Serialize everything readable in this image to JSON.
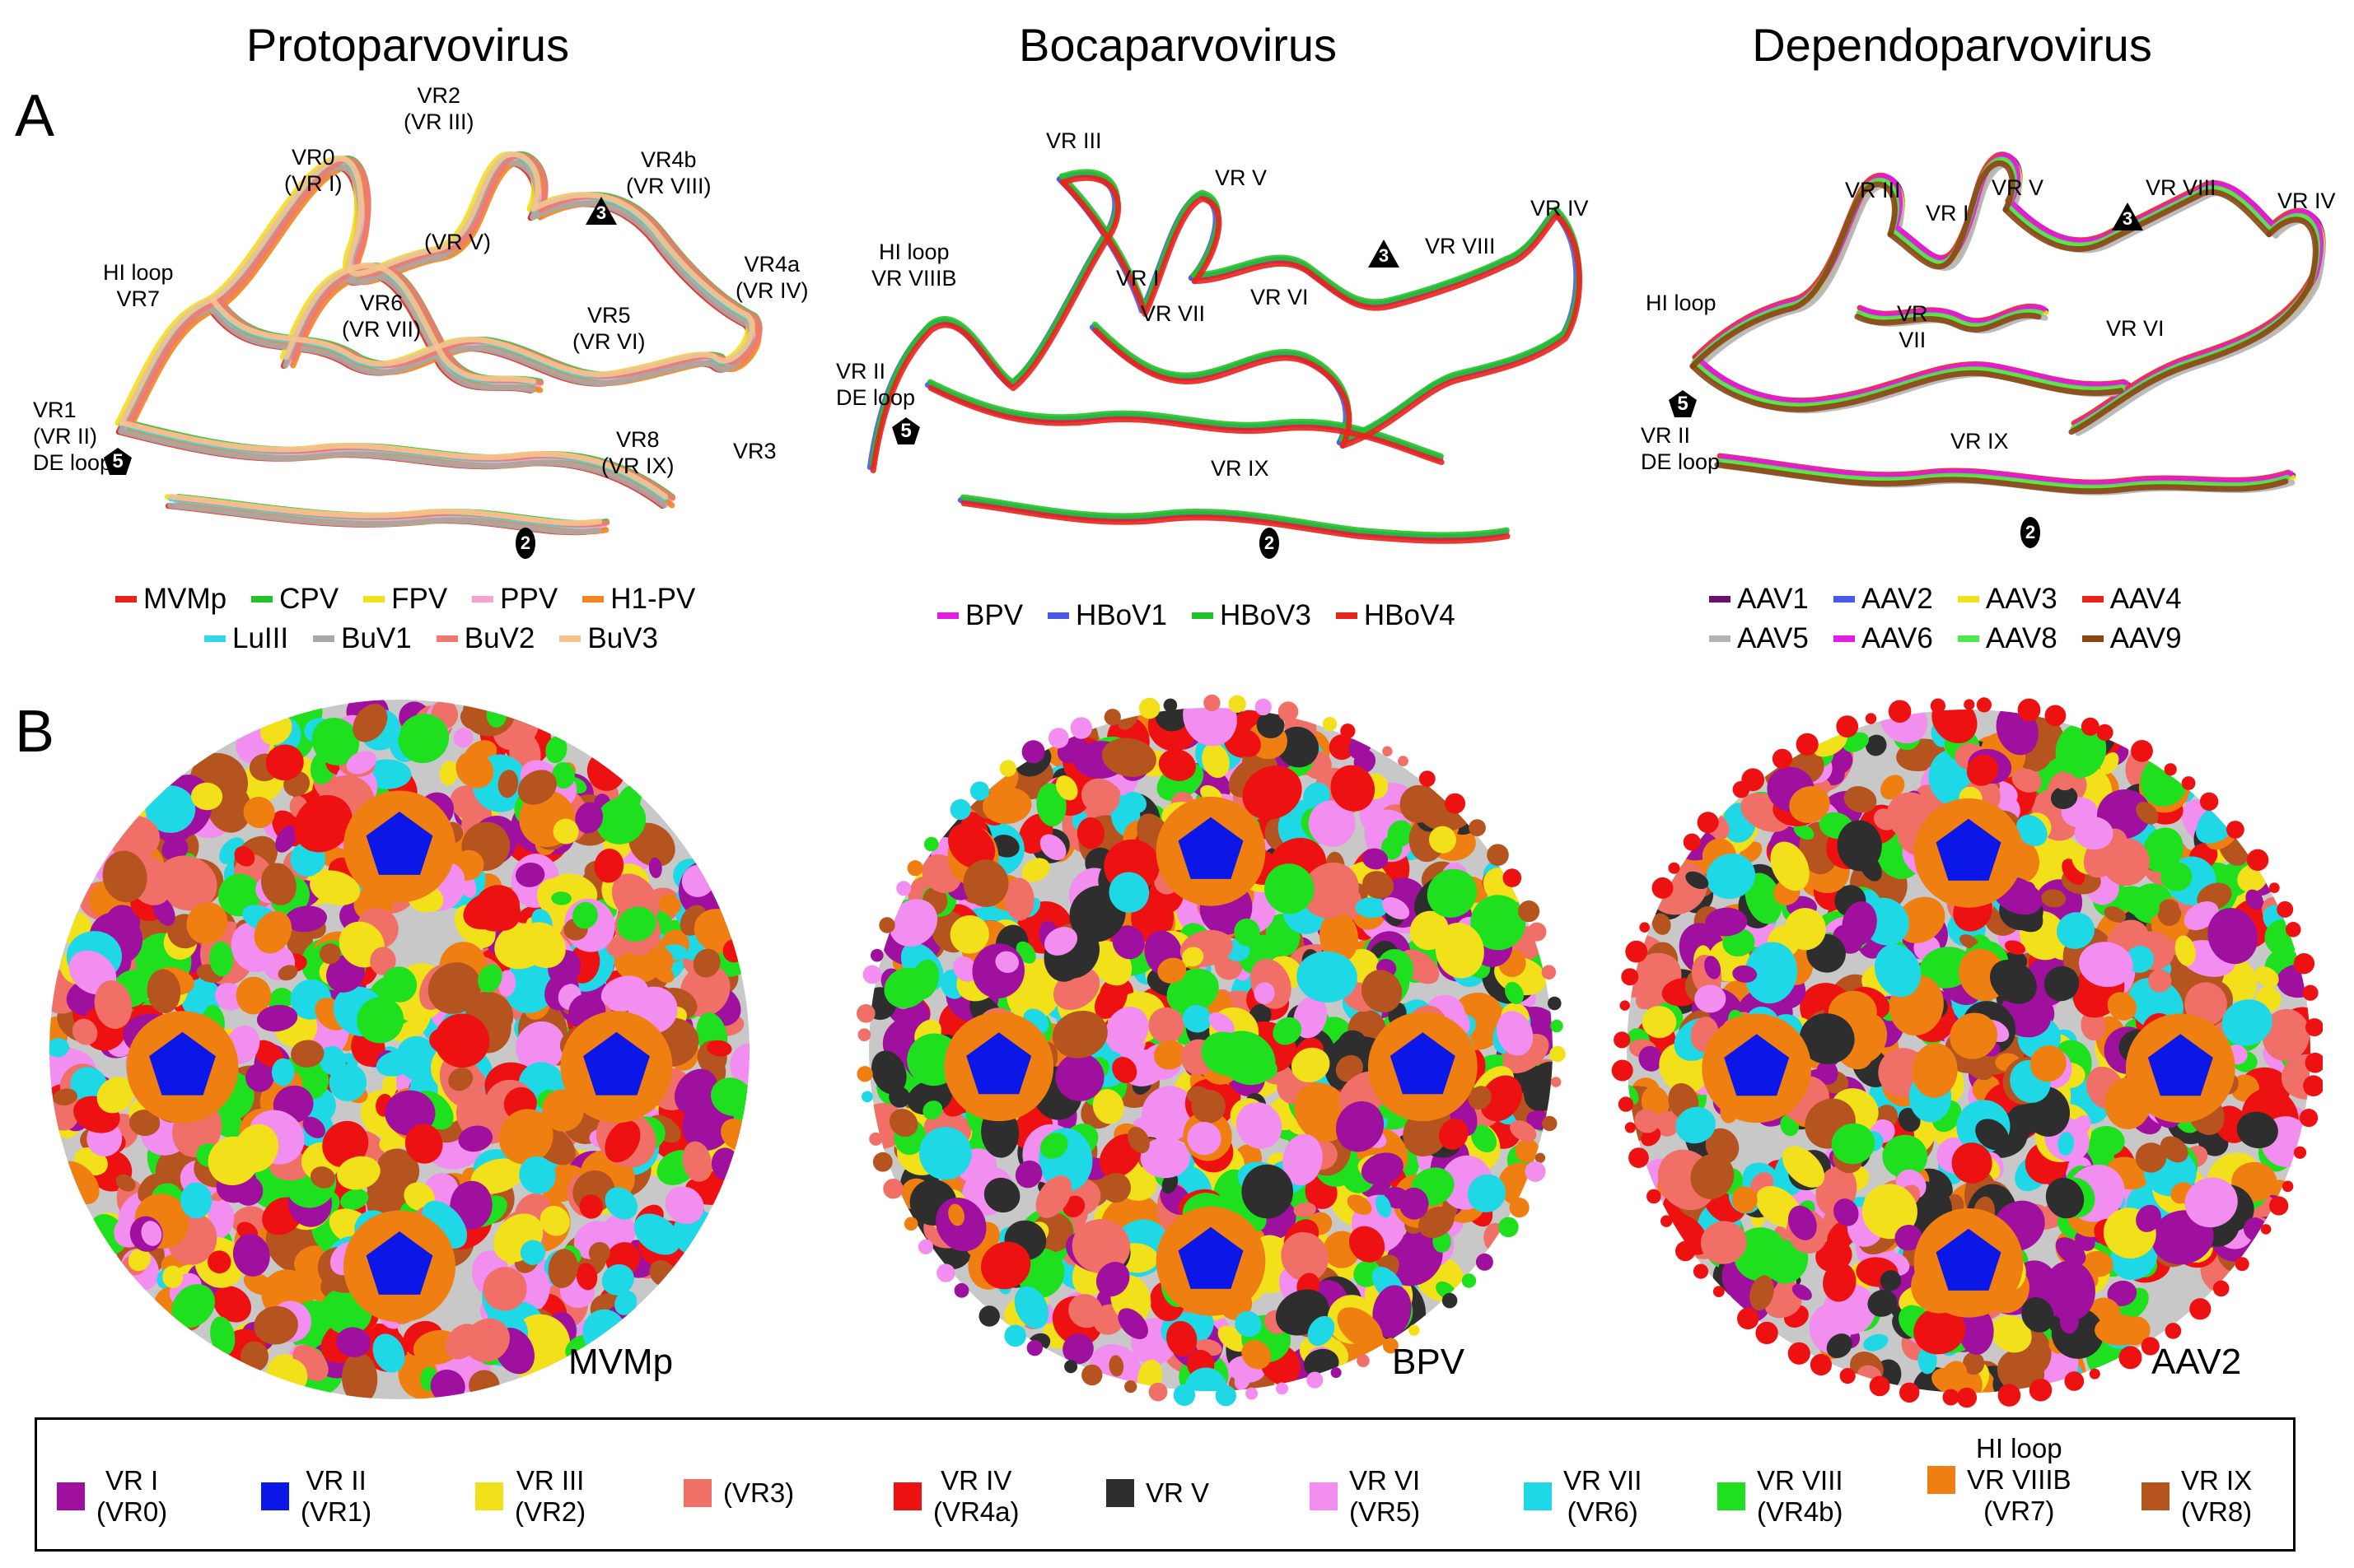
{
  "column_titles": [
    "Protoparvovirus",
    "Bocaparvovirus",
    "Dependoparvovirus"
  ],
  "panel_letters": {
    "a": "A",
    "b": "B"
  },
  "proto": {
    "labels": {
      "vr2": "VR2",
      "vr2b": "(VR III)",
      "vr0": "VR0",
      "vr0b": "(VR I)",
      "vr4b": "VR4b",
      "vr4bb": "(VR VIII)",
      "vrv": "(VR V)",
      "hi": "HI loop",
      "hib": "VR7",
      "vr6": "VR6",
      "vr6b": "(VR VII)",
      "vr4a": "VR4a",
      "vr4ab": "(VR IV)",
      "vr5": "VR5",
      "vr5b": "(VR VI)",
      "vr1": "VR1",
      "vr1b": "(VR II)",
      "de": "DE loop",
      "vr8": "VR8",
      "vr8b": "(VR IX)",
      "vr3": "VR3"
    },
    "legend": [
      {
        "name": "MVMp",
        "color": "#e8231c"
      },
      {
        "name": "CPV",
        "color": "#22c32a"
      },
      {
        "name": "FPV",
        "color": "#f2e01a"
      },
      {
        "name": "PPV",
        "color": "#f6a3cf"
      },
      {
        "name": "H1-PV",
        "color": "#f08522"
      },
      {
        "name": "LuIII",
        "color": "#31d6e8"
      },
      {
        "name": "BuV1",
        "color": "#a8a8a8"
      },
      {
        "name": "BuV2",
        "color": "#f07a72"
      },
      {
        "name": "BuV3",
        "color": "#f5c38f"
      }
    ],
    "capsid_label": "MVMp"
  },
  "boca": {
    "labels": {
      "vr3": "VR III",
      "vr5": "VR V",
      "hi": "HI loop",
      "hib": "VR VIIIB",
      "vr1": "VR I",
      "vr8": "VR VIII",
      "vr4": "VR IV",
      "vr7": "VR VII",
      "vr6": "VR VI",
      "vr2": "VR II",
      "de": "DE loop",
      "vr9": "VR IX"
    },
    "legend": [
      {
        "name": "BPV",
        "color": "#e01de0"
      },
      {
        "name": "HBoV1",
        "color": "#4a5ae8"
      },
      {
        "name": "HBoV3",
        "color": "#22c32a"
      },
      {
        "name": "HBoV4",
        "color": "#e8231c"
      }
    ],
    "capsid_label": "BPV"
  },
  "depend": {
    "labels": {
      "vr3": "VR III",
      "vr1": "VR I",
      "vr5": "VR V",
      "vr8": "VR VIII",
      "vr4": "VR IV",
      "hi": "HI loop",
      "vr": "VR",
      "vr7": "VII",
      "vr6": "VR VI",
      "vr2": "VR II",
      "de": "DE loop",
      "vr9": "VR IX"
    },
    "legend": [
      {
        "name": "AAV1",
        "color": "#6b0f6b"
      },
      {
        "name": "AAV2",
        "color": "#4a5ae8"
      },
      {
        "name": "AAV3",
        "color": "#f2e01a"
      },
      {
        "name": "AAV4",
        "color": "#e8231c"
      },
      {
        "name": "AAV5",
        "color": "#b4b4b4"
      },
      {
        "name": "AAV6",
        "color": "#e01de0"
      },
      {
        "name": "AAV8",
        "color": "#4ee84e"
      },
      {
        "name": "AAV9",
        "color": "#8b4513"
      }
    ],
    "capsid_label": "AAV2"
  },
  "symmetry_markers": {
    "five": "5",
    "three": "3",
    "two": "2"
  },
  "key": [
    {
      "text": "VR I\n(VR0)",
      "color": "#a0109e"
    },
    {
      "text": "VR II\n(VR1)",
      "color": "#0a17e6"
    },
    {
      "text": "VR III\n(VR2)",
      "color": "#f2e01a"
    },
    {
      "text": "(VR3)",
      "color": "#f07068"
    },
    {
      "text": "VR IV\n(VR4a)",
      "color": "#ee1111"
    },
    {
      "text": "VR V",
      "color": "#2e2e2e"
    },
    {
      "text": "VR VI\n(VR5)",
      "color": "#f28ef0"
    },
    {
      "text": "VR VII\n(VR6)",
      "color": "#1fd8e6"
    },
    {
      "text": "VR VIII\n(VR4b)",
      "color": "#1ee01e"
    },
    {
      "text": "HI loop\nVR VIIIB\n(VR7)",
      "color": "#f07f12"
    },
    {
      "text": "VR IX\n(VR8)",
      "color": "#b5541f"
    }
  ],
  "surface_colors": {
    "base": "#c8c8c8"
  }
}
